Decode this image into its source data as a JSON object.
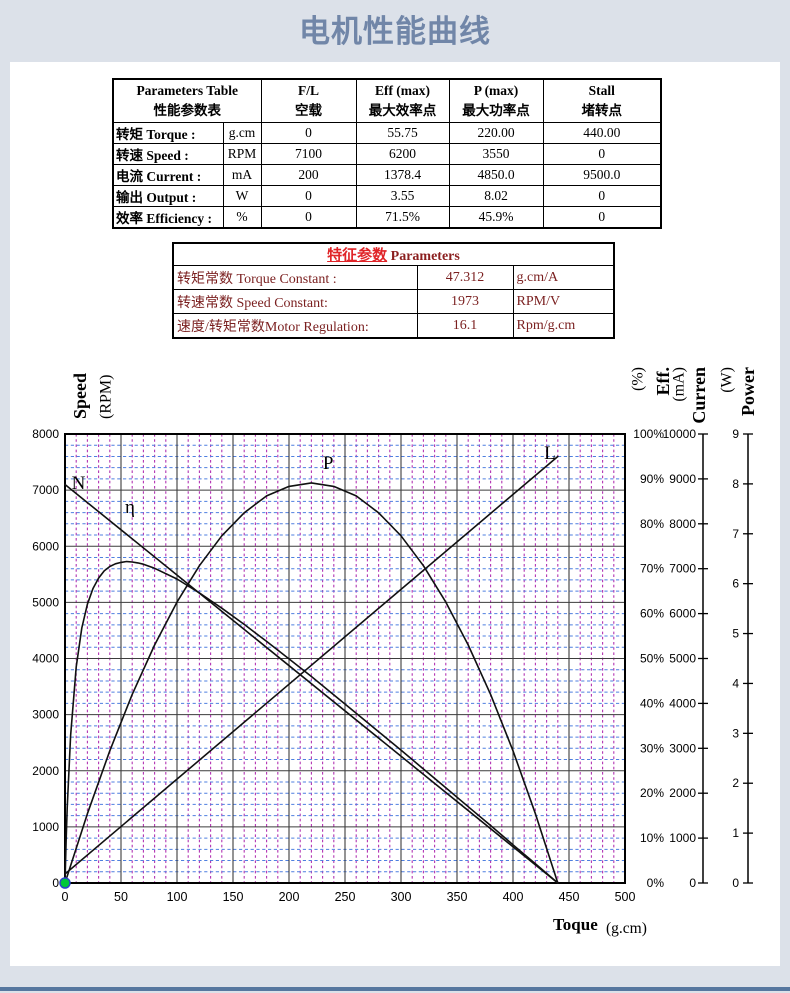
{
  "page": {
    "title": "电机性能曲线",
    "title_color": "#7186a8",
    "background": "#dce1e9",
    "bottom_bar_color": "#56779f"
  },
  "performance_table": {
    "header_main": {
      "en": "Parameters Table",
      "cn": "性能参数表"
    },
    "header_cols": [
      {
        "en": "F/L",
        "cn": "空载"
      },
      {
        "en": "Eff (max)",
        "cn": "最大效率点"
      },
      {
        "en": "P (max)",
        "cn": "最大功率点"
      },
      {
        "en": "Stall",
        "cn": "堵转点"
      }
    ],
    "rows": [
      {
        "label": "转矩 Torque :",
        "unit": "g.cm",
        "values": [
          "0",
          "55.75",
          "220.00",
          "440.00"
        ]
      },
      {
        "label": "转速 Speed :",
        "unit": "RPM",
        "values": [
          "7100",
          "6200",
          "3550",
          "0"
        ]
      },
      {
        "label": "电流 Current :",
        "unit": "mA",
        "values": [
          "200",
          "1378.4",
          "4850.0",
          "9500.0"
        ]
      },
      {
        "label": "输出 Output :",
        "unit": "W",
        "values": [
          "0",
          "3.55",
          "8.02",
          "0"
        ]
      },
      {
        "label": "效率 Efficiency :",
        "unit": "%",
        "values": [
          "0",
          "71.5%",
          "45.9%",
          "0"
        ]
      }
    ]
  },
  "characteristics_table": {
    "title_cn": "特征参数",
    "title_en": "Parameters",
    "text_color": "#7a1f1f",
    "title_cn_color": "#e02428",
    "rows": [
      {
        "label": "转矩常数 Torque Constant :",
        "value": "47.312",
        "unit": "g.cm/A"
      },
      {
        "label": "转速常数 Speed Constant:",
        "value": "1973",
        "unit": "RPM/V"
      },
      {
        "label": "速度/转矩常数Motor Regulation:",
        "value": "16.1",
        "unit": "Rpm/g.cm"
      }
    ]
  },
  "chart_data": {
    "type": "line",
    "x_axis": {
      "name": "Toque",
      "unit": "(g.cm)",
      "min": 0,
      "max": 500,
      "major_step": 50,
      "minor_step": 10
    },
    "y_axes": [
      {
        "id": "speed",
        "name": "Speed",
        "unit": "(RPM)",
        "min": 0,
        "max": 8000,
        "major_step": 1000,
        "minor_step": 200,
        "tick_suffix": ""
      },
      {
        "id": "eff",
        "name": "Eff.",
        "unit": "(%)",
        "min": 0,
        "max": 100,
        "major_step": 10,
        "tick_suffix": "%"
      },
      {
        "id": "current",
        "name": "Curren",
        "unit": "(mA)",
        "min": 0,
        "max": 10000,
        "major_step": 1000,
        "tick_suffix": ""
      },
      {
        "id": "power",
        "name": "Power",
        "unit": "(W)",
        "min": 0,
        "max": 9,
        "major_step": 1,
        "tick_suffix": ""
      }
    ],
    "grid": {
      "major_color": "#3c3c3c",
      "minor_h_color": "#4f7fe0",
      "minor_v_color": "#b233b2"
    },
    "curve_color": "#111111",
    "origin_marker": {
      "x": 0,
      "y": 0,
      "fill": "#00c838",
      "stroke": "#2b45c8"
    },
    "series": [
      {
        "name": "N",
        "axis": "speed",
        "points": [
          [
            0,
            7100
          ],
          [
            440,
            0
          ]
        ]
      },
      {
        "name": "L",
        "axis": "current",
        "points": [
          [
            0,
            200
          ],
          [
            440,
            9500
          ]
        ]
      },
      {
        "name": "P",
        "axis": "power",
        "points": [
          [
            0,
            0
          ],
          [
            20,
            1.39
          ],
          [
            40,
            2.65
          ],
          [
            60,
            3.78
          ],
          [
            80,
            4.77
          ],
          [
            100,
            5.63
          ],
          [
            120,
            6.36
          ],
          [
            140,
            6.96
          ],
          [
            160,
            7.42
          ],
          [
            180,
            7.76
          ],
          [
            200,
            7.95
          ],
          [
            220,
            8.02
          ],
          [
            240,
            7.95
          ],
          [
            260,
            7.76
          ],
          [
            280,
            7.42
          ],
          [
            300,
            6.96
          ],
          [
            320,
            6.36
          ],
          [
            340,
            5.63
          ],
          [
            360,
            4.77
          ],
          [
            380,
            3.78
          ],
          [
            400,
            2.65
          ],
          [
            420,
            1.39
          ],
          [
            440,
            0
          ]
        ]
      },
      {
        "name": "η",
        "axis": "eff",
        "points": [
          [
            0,
            0
          ],
          [
            1,
            9.2
          ],
          [
            2,
            16.7
          ],
          [
            5,
            32.8
          ],
          [
            10,
            48.1
          ],
          [
            15,
            56.8
          ],
          [
            20,
            62.1
          ],
          [
            25,
            65.6
          ],
          [
            30,
            67.9
          ],
          [
            35,
            69.5
          ],
          [
            40,
            70.5
          ],
          [
            45,
            71.1
          ],
          [
            50,
            71.4
          ],
          [
            55,
            71.6
          ],
          [
            60,
            71.5
          ],
          [
            65,
            71.3
          ],
          [
            70,
            71.0
          ],
          [
            80,
            70.1
          ],
          [
            100,
            67.7
          ],
          [
            120,
            64.6
          ],
          [
            140,
            61.2
          ],
          [
            160,
            57.6
          ],
          [
            180,
            53.8
          ],
          [
            200,
            49.9
          ],
          [
            220,
            46.0
          ],
          [
            240,
            41.9
          ],
          [
            260,
            37.8
          ],
          [
            280,
            33.7
          ],
          [
            300,
            29.6
          ],
          [
            320,
            25.4
          ],
          [
            340,
            21.2
          ],
          [
            360,
            17.0
          ],
          [
            380,
            12.8
          ],
          [
            400,
            8.5
          ],
          [
            420,
            4.3
          ],
          [
            440,
            0
          ]
        ]
      }
    ],
    "curve_labels": [
      {
        "text": "N",
        "t": 12,
        "v_speed": 7130
      },
      {
        "text": "η",
        "t": 58,
        "v_speed": 6700
      },
      {
        "text": "P",
        "t": 235,
        "v_speed": 7480
      },
      {
        "text": "L",
        "t": 433,
        "v_speed": 7660
      }
    ]
  }
}
